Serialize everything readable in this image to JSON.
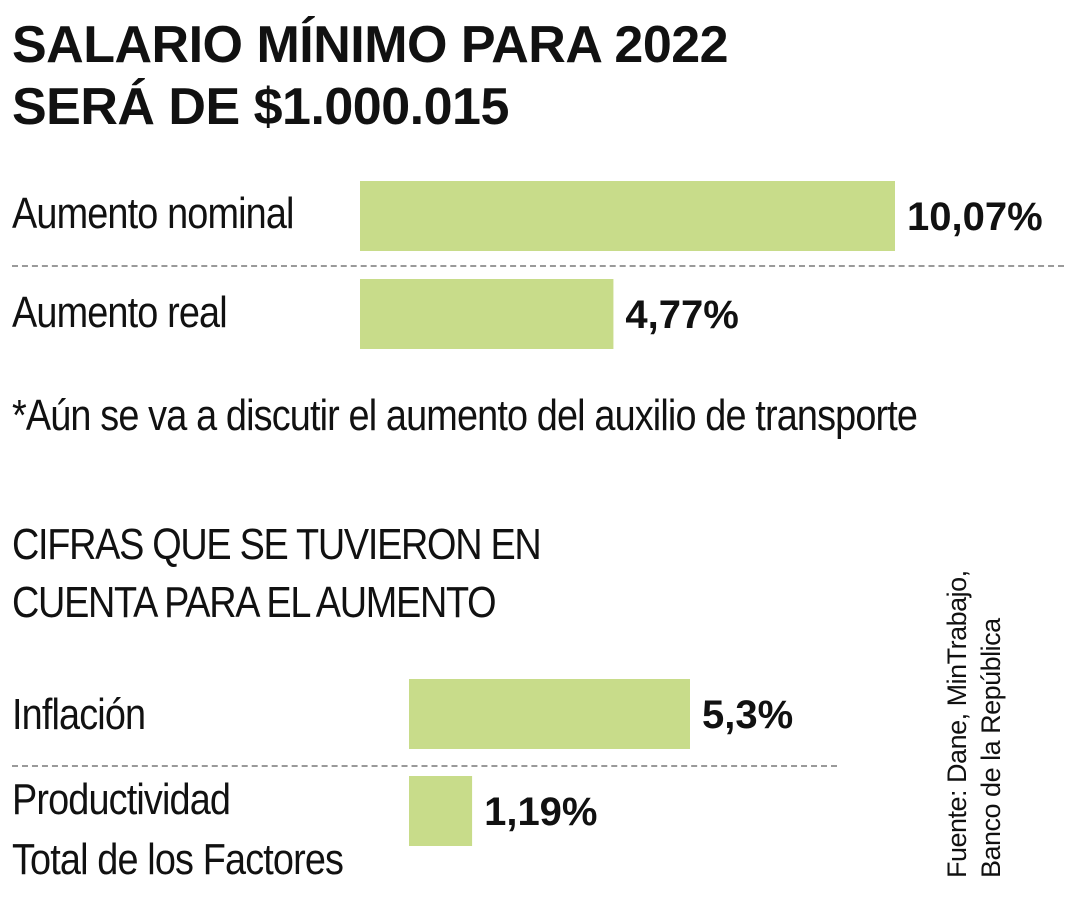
{
  "chart_data": [
    {
      "type": "bar",
      "orientation": "horizontal",
      "title": "SALARIO MÍNIMO PARA 2022 SERÁ DE $1.000.015",
      "categories": [
        "Aumento nominal",
        "Aumento real"
      ],
      "values": [
        10.07,
        4.77
      ],
      "value_labels": [
        "10,07%",
        "4,77%"
      ],
      "note": "*Aún se va a discutir el aumento del auxilio de transporte",
      "bar_color": "#c8dc8a"
    },
    {
      "type": "bar",
      "orientation": "horizontal",
      "title": "CIFRAS QUE SE TUVIERON EN CUENTA PARA EL AUMENTO",
      "categories": [
        "Inflación",
        "Productividad Total de los Factores"
      ],
      "values": [
        5.3,
        1.19
      ],
      "value_labels": [
        "5,3%",
        "1,19%"
      ],
      "bar_color": "#c8dc8a"
    }
  ],
  "header": {
    "title_line1": "SALARIO MÍNIMO PARA 2022",
    "title_line2": "SERÁ DE $1.000.015"
  },
  "section2": {
    "title_line1": "CIFRAS QUE SE TUVIERON EN",
    "title_line2": "CUENTA PARA EL AUMENTO",
    "label2_line1": "Productividad",
    "label2_line2": "Total de los Factores"
  },
  "source": {
    "line1": "Fuente: Dane, MinTrabajo,",
    "line2": "Banco de la República"
  }
}
